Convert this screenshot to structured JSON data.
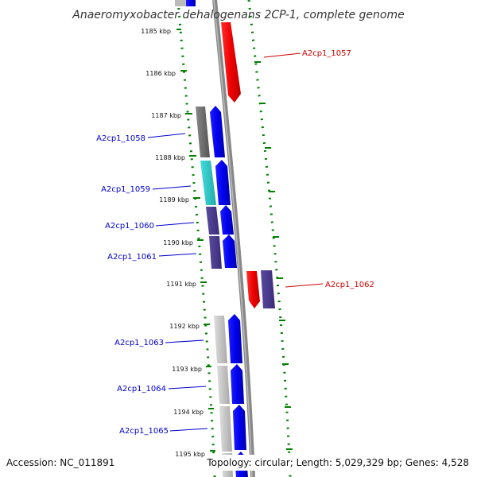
{
  "title": "Anaeromyxobacter dehalogenans 2CP-1, complete genome",
  "footer": {
    "accession": "Accession: NC_011891",
    "topology": "Topology: circular; Length: 5,029,329 bp; Genes: 4,528"
  },
  "ticks": [
    "1185 kbp",
    "1186 kbp",
    "1187 kbp",
    "1188 kbp",
    "1189 kbp",
    "1190 kbp",
    "1191 kbp",
    "1192 kbp",
    "1193 kbp",
    "1194 kbp",
    "1195 kbp"
  ],
  "genes": [
    {
      "label": "A2cp1_1057",
      "strand": "reverse",
      "fill": "#ff0000"
    },
    {
      "label": "A2cp1_1058",
      "strand": "forward",
      "fill": "#0000ff"
    },
    {
      "label": "A2cp1_1059",
      "strand": "forward",
      "fill": "#0000ff"
    },
    {
      "label": "A2cp1_1060",
      "strand": "forward",
      "fill": "#0000ff"
    },
    {
      "label": "A2cp1_1061",
      "strand": "forward",
      "fill": "#0000ff"
    },
    {
      "label": "A2cp1_1062",
      "strand": "reverse",
      "fill": "#ff0000"
    },
    {
      "label": "A2cp1_1063",
      "strand": "forward",
      "fill": "#0000ff"
    },
    {
      "label": "A2cp1_1064",
      "strand": "forward",
      "fill": "#0000ff"
    },
    {
      "label": "A2cp1_1065",
      "strand": "forward",
      "fill": "#0000ff"
    }
  ],
  "colors": {
    "forward_label": "#0000cc",
    "reverse_label": "#cc0000",
    "backbone": "#888888",
    "gc_dots": "#008000",
    "cog_grey": "#666666",
    "cog_cyan": "#2ec8c8",
    "cog_purple": "#4b3c8c",
    "cog_light": "#bbbbbb"
  }
}
